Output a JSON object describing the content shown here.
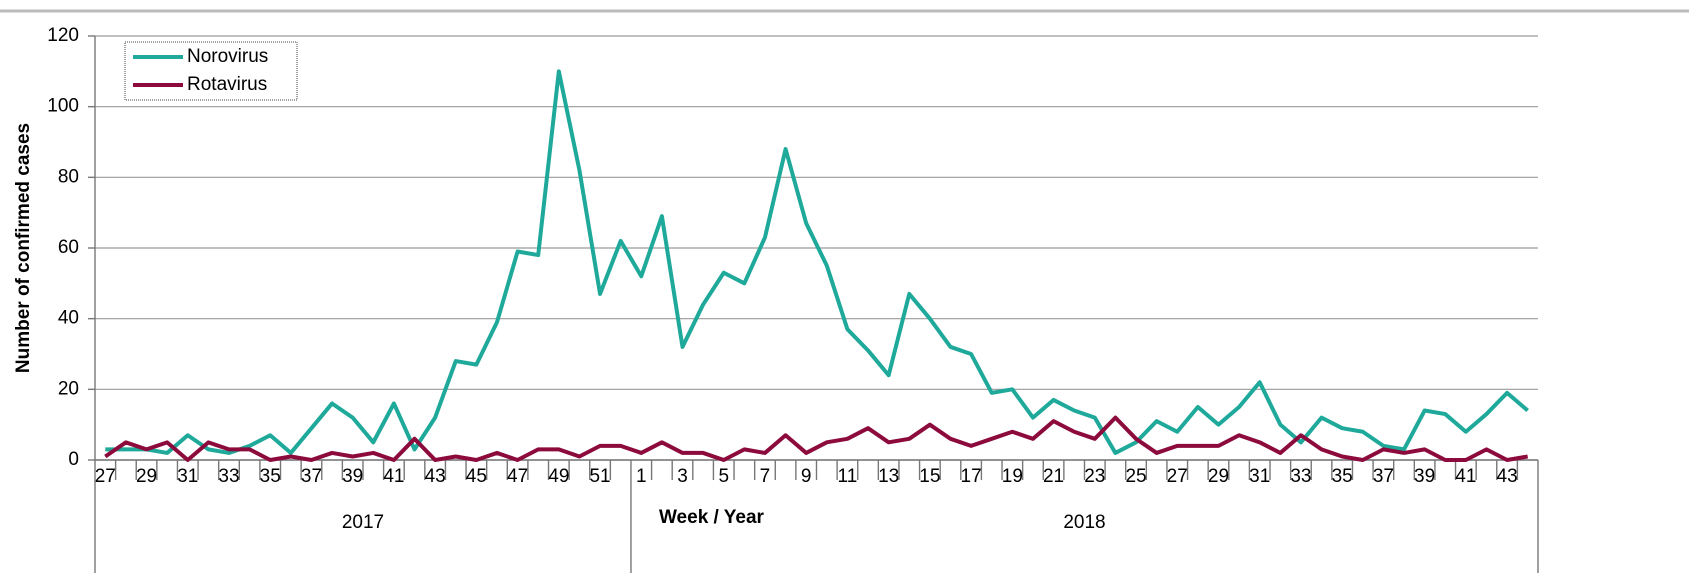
{
  "chart_data": {
    "type": "line",
    "y_label": "Number of confirmed cases",
    "x_label": "Week / Year",
    "x_groups": [
      "2017",
      "2018"
    ],
    "categories": [
      "27",
      null,
      "29",
      null,
      "31",
      null,
      "33",
      null,
      "35",
      null,
      "37",
      null,
      "39",
      null,
      "41",
      null,
      "43",
      null,
      "45",
      null,
      "47",
      null,
      "49",
      null,
      "51",
      null,
      "1",
      null,
      "3",
      null,
      "5",
      null,
      "7",
      null,
      "9",
      null,
      "11",
      null,
      "13",
      null,
      "15",
      null,
      "17",
      null,
      "19",
      null,
      "21",
      null,
      "23",
      null,
      "25",
      null,
      "27",
      null,
      "29",
      null,
      "31",
      null,
      "33",
      null,
      "35",
      null,
      "37",
      null,
      "39",
      null,
      "41",
      null,
      "43",
      null
    ],
    "series": [
      {
        "name": "Norovirus",
        "color": "#1ea99a",
        "values": [
          3,
          3,
          3,
          2,
          7,
          3,
          2,
          4,
          7,
          2,
          9,
          16,
          12,
          5,
          16,
          3,
          12,
          28,
          27,
          39,
          59,
          58,
          110,
          82,
          47,
          62,
          52,
          69,
          32,
          44,
          53,
          50,
          63,
          88,
          67,
          55,
          37,
          31,
          24,
          47,
          40,
          32,
          30,
          19,
          20,
          12,
          17,
          14,
          12,
          2,
          5,
          11,
          8,
          15,
          10,
          15,
          22,
          10,
          5,
          12,
          9,
          8,
          4,
          3,
          14,
          13,
          8,
          13,
          19,
          14
        ]
      },
      {
        "name": "Rotavirus",
        "color": "#8c0b3c",
        "values": [
          1,
          5,
          3,
          5,
          0,
          5,
          3,
          3,
          0,
          1,
          0,
          2,
          1,
          2,
          0,
          6,
          0,
          1,
          0,
          2,
          0,
          3,
          3,
          1,
          4,
          4,
          2,
          5,
          2,
          2,
          0,
          3,
          2,
          7,
          2,
          5,
          6,
          9,
          5,
          6,
          10,
          6,
          4,
          6,
          8,
          6,
          11,
          8,
          6,
          12,
          6,
          2,
          4,
          4,
          4,
          7,
          5,
          2,
          7,
          3,
          1,
          0,
          3,
          2,
          3,
          0,
          0,
          3,
          0,
          1
        ]
      }
    ],
    "ylim": [
      0,
      120
    ],
    "yticks": [
      0,
      20,
      40,
      60,
      80,
      100,
      120
    ],
    "grid": true,
    "legend": "upper left"
  }
}
